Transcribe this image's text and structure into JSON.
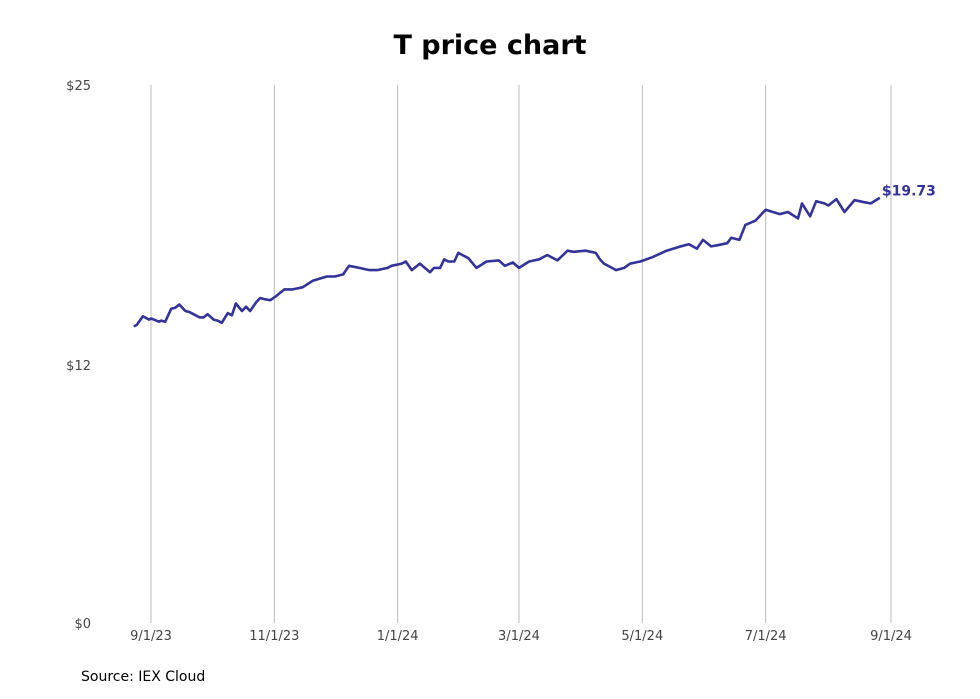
{
  "chart_data": {
    "type": "line",
    "title": "T price chart",
    "source": "Source: IEX Cloud",
    "ylim": [
      0,
      25
    ],
    "y_ticks": [
      {
        "value": 25,
        "label": "$25"
      },
      {
        "value": 12,
        "label": "$12"
      },
      {
        "value": 0,
        "label": "$0"
      }
    ],
    "x_ticks": [
      "9/1/23",
      "11/1/23",
      "1/1/24",
      "3/1/24",
      "5/1/24",
      "7/1/24",
      "9/1/24"
    ],
    "grid": "vertical",
    "line_color": "#333399",
    "last_value_label": "$19.73",
    "series": [
      {
        "x": [
          "2023-08-24",
          "2023-08-25",
          "2023-08-28",
          "2023-08-29",
          "2023-08-31",
          "2023-09-01",
          "2023-09-05",
          "2023-09-06",
          "2023-09-08",
          "2023-09-11",
          "2023-09-13",
          "2023-09-15",
          "2023-09-18",
          "2023-09-20",
          "2023-09-22",
          "2023-09-25",
          "2023-09-27",
          "2023-09-29",
          "2023-10-02",
          "2023-10-04",
          "2023-10-06",
          "2023-10-09",
          "2023-10-11",
          "2023-10-13",
          "2023-10-16",
          "2023-10-18",
          "2023-10-20",
          "2023-10-23",
          "2023-10-25",
          "2023-10-27",
          "2023-10-30",
          "2023-11-02",
          "2023-11-06",
          "2023-11-10",
          "2023-11-15",
          "2023-11-20",
          "2023-11-27",
          "2023-12-01",
          "2023-12-05",
          "2023-12-08",
          "2023-12-13",
          "2023-12-18",
          "2023-12-22",
          "2023-12-27",
          "2023-12-29",
          "2024-01-03",
          "2024-01-05",
          "2024-01-08",
          "2024-01-12",
          "2024-01-17",
          "2024-01-19",
          "2024-01-22",
          "2024-01-24",
          "2024-01-26",
          "2024-01-29",
          "2024-01-31",
          "2024-02-05",
          "2024-02-09",
          "2024-02-14",
          "2024-02-20",
          "2024-02-23",
          "2024-02-27",
          "2024-03-01",
          "2024-03-06",
          "2024-03-11",
          "2024-03-15",
          "2024-03-20",
          "2024-03-25",
          "2024-03-28",
          "2024-04-03",
          "2024-04-08",
          "2024-04-10",
          "2024-04-12",
          "2024-04-16",
          "2024-04-18",
          "2024-04-22",
          "2024-04-25",
          "2024-04-30",
          "2024-05-06",
          "2024-05-13",
          "2024-05-20",
          "2024-05-24",
          "2024-05-28",
          "2024-05-31",
          "2024-06-04",
          "2024-06-07",
          "2024-06-12",
          "2024-06-14",
          "2024-06-18",
          "2024-06-21",
          "2024-06-26",
          "2024-07-01",
          "2024-07-08",
          "2024-07-12",
          "2024-07-17",
          "2024-07-19",
          "2024-07-23",
          "2024-07-26",
          "2024-07-30",
          "2024-08-01",
          "2024-08-05",
          "2024-08-09",
          "2024-08-14",
          "2024-08-19",
          "2024-08-22",
          "2024-08-26"
        ],
        "y": [
          13.8,
          13.85,
          14.25,
          14.2,
          14.1,
          14.15,
          14.0,
          14.05,
          14.0,
          14.6,
          14.65,
          14.8,
          14.5,
          14.45,
          14.35,
          14.2,
          14.2,
          14.35,
          14.1,
          14.05,
          13.95,
          14.4,
          14.3,
          14.85,
          14.5,
          14.7,
          14.5,
          14.9,
          15.1,
          15.05,
          15.0,
          15.2,
          15.5,
          15.5,
          15.6,
          15.9,
          16.1,
          16.1,
          16.2,
          16.6,
          16.5,
          16.4,
          16.4,
          16.5,
          16.6,
          16.7,
          16.8,
          16.4,
          16.7,
          16.3,
          16.5,
          16.5,
          16.9,
          16.8,
          16.8,
          17.2,
          16.95,
          16.5,
          16.8,
          16.85,
          16.6,
          16.75,
          16.5,
          16.8,
          16.9,
          17.1,
          16.85,
          17.3,
          17.25,
          17.3,
          17.2,
          16.9,
          16.7,
          16.5,
          16.4,
          16.5,
          16.7,
          16.8,
          17.0,
          17.3,
          17.5,
          17.6,
          17.4,
          17.8,
          17.5,
          17.55,
          17.65,
          17.9,
          17.8,
          18.5,
          18.7,
          19.2,
          19.0,
          19.1,
          18.8,
          19.5,
          18.9,
          19.6,
          19.5,
          19.4,
          19.7,
          19.1,
          19.65,
          19.55,
          19.5,
          19.73
        ]
      }
    ]
  }
}
